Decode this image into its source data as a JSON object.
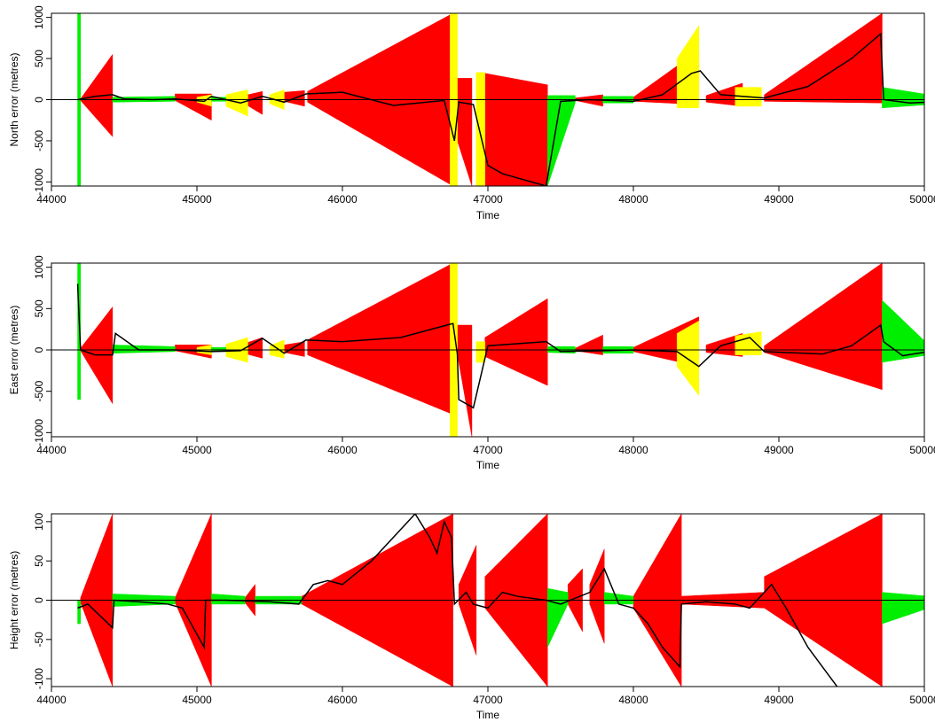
{
  "chart_data": [
    {
      "type": "area",
      "xlabel": "Time",
      "ylabel": "North error (metres)",
      "xlim": [
        44000,
        50000
      ],
      "ylim": [
        -1050,
        1050
      ],
      "xticks": [
        44000,
        45000,
        46000,
        47000,
        48000,
        49000,
        50000
      ],
      "yticks": [
        -1000,
        -500,
        0,
        500,
        1000
      ],
      "colors": {
        "bound_red": "#ff0000",
        "bound_yellow": "#ffff00",
        "bound_green": "#00ee00",
        "line": "#000000"
      },
      "red_segments": [
        {
          "x": [
            44200,
            44420
          ],
          "lo": [
            -10,
            -450
          ],
          "hi": [
            10,
            550
          ]
        },
        {
          "x": [
            44850,
            45100
          ],
          "lo": [
            -10,
            -250
          ],
          "hi": [
            70,
            70
          ]
        },
        {
          "x": [
            45300,
            45450
          ],
          "lo": [
            -20,
            -180
          ],
          "hi": [
            40,
            100
          ]
        },
        {
          "x": [
            45600,
            45740
          ],
          "lo": [
            -20,
            -80
          ],
          "hi": [
            90,
            110
          ]
        },
        {
          "x": [
            45760,
            46760
          ],
          "lo": [
            -30,
            -1050
          ],
          "hi": [
            100,
            1050
          ]
        },
        {
          "x": [
            46790,
            46890
          ],
          "lo": [
            -500,
            -1050
          ],
          "hi": [
            260,
            260
          ]
        },
        {
          "x": [
            46950,
            47410
          ],
          "lo": [
            -1050,
            -1050
          ],
          "hi": [
            330,
            180
          ]
        },
        {
          "x": [
            47600,
            47790
          ],
          "lo": [
            -10,
            -80
          ],
          "hi": [
            20,
            60
          ]
        },
        {
          "x": [
            48000,
            48450
          ],
          "lo": [
            -20,
            -60
          ],
          "hi": [
            30,
            600
          ]
        },
        {
          "x": [
            48500,
            48750
          ],
          "lo": [
            -30,
            -80
          ],
          "hi": [
            50,
            200
          ]
        },
        {
          "x": [
            48900,
            49710
          ],
          "lo": [
            -20,
            -40
          ],
          "hi": [
            60,
            1050
          ]
        }
      ],
      "yellow_segments": [
        {
          "x": [
            45000,
            45100
          ],
          "lo": [
            -30,
            -80
          ],
          "hi": [
            30,
            60
          ]
        },
        {
          "x": [
            45200,
            45350
          ],
          "lo": [
            -80,
            -200
          ],
          "hi": [
            60,
            120
          ]
        },
        {
          "x": [
            45500,
            45600
          ],
          "lo": [
            -50,
            -120
          ],
          "hi": [
            60,
            120
          ]
        },
        {
          "x": [
            46740,
            46790
          ],
          "lo": [
            -1050,
            -1050
          ],
          "hi": [
            1050,
            1050
          ]
        },
        {
          "x": [
            46920,
            46980
          ],
          "lo": [
            -1050,
            -1050
          ],
          "hi": [
            330,
            330
          ]
        },
        {
          "x": [
            48300,
            48450
          ],
          "lo": [
            -100,
            -100
          ],
          "hi": [
            500,
            900
          ]
        },
        {
          "x": [
            48700,
            48880
          ],
          "lo": [
            -80,
            -80
          ],
          "hi": [
            150,
            150
          ]
        }
      ],
      "green_segments": [
        {
          "x": [
            44180,
            44200
          ],
          "lo": [
            -1050,
            -1050
          ],
          "hi": [
            1050,
            1050
          ]
        },
        {
          "x": [
            44420,
            44850
          ],
          "lo": [
            -30,
            -20
          ],
          "hi": [
            30,
            40
          ]
        },
        {
          "x": [
            45100,
            45200
          ],
          "lo": [
            -20,
            -20
          ],
          "hi": [
            30,
            30
          ]
        },
        {
          "x": [
            47410,
            47600
          ],
          "lo": [
            -1050,
            -40
          ],
          "hi": [
            50,
            50
          ]
        },
        {
          "x": [
            47790,
            48000
          ],
          "lo": [
            -40,
            -40
          ],
          "hi": [
            40,
            40
          ]
        },
        {
          "x": [
            49710,
            50030
          ],
          "lo": [
            -100,
            -60
          ],
          "hi": [
            150,
            60
          ]
        }
      ],
      "line": {
        "x": [
          44180,
          44300,
          44420,
          44500,
          44700,
          44850,
          45050,
          45100,
          45300,
          45450,
          45600,
          45750,
          46000,
          46350,
          46700,
          46770,
          46800,
          46900,
          47000,
          47100,
          47400,
          47500,
          47700,
          48000,
          48200,
          48400,
          48460,
          48600,
          48900,
          49200,
          49500,
          49700,
          49720,
          49900,
          50030
        ],
        "y": [
          0,
          40,
          60,
          10,
          0,
          10,
          -20,
          40,
          -40,
          40,
          -30,
          70,
          90,
          -70,
          -10,
          -500,
          -30,
          -60,
          -800,
          -900,
          -1050,
          -20,
          0,
          -20,
          60,
          320,
          350,
          60,
          20,
          160,
          500,
          800,
          0,
          -40,
          -30
        ]
      }
    },
    {
      "type": "area",
      "xlabel": "Time",
      "ylabel": "East error (metres)",
      "xlim": [
        44000,
        50000
      ],
      "ylim": [
        -1050,
        1050
      ],
      "xticks": [
        44000,
        45000,
        46000,
        47000,
        48000,
        49000,
        50000
      ],
      "yticks": [
        -1000,
        -500,
        0,
        500,
        1000
      ],
      "colors": {
        "bound_red": "#ff0000",
        "bound_yellow": "#ffff00",
        "bound_green": "#00ee00",
        "line": "#000000"
      },
      "red_segments": [
        {
          "x": [
            44200,
            44420
          ],
          "lo": [
            -10,
            -650
          ],
          "hi": [
            20,
            520
          ]
        },
        {
          "x": [
            44850,
            45100
          ],
          "lo": [
            -10,
            -100
          ],
          "hi": [
            60,
            60
          ]
        },
        {
          "x": [
            45300,
            45450
          ],
          "lo": [
            -30,
            -100
          ],
          "hi": [
            60,
            150
          ]
        },
        {
          "x": [
            45600,
            45740
          ],
          "lo": [
            -30,
            -80
          ],
          "hi": [
            60,
            100
          ]
        },
        {
          "x": [
            45760,
            46760
          ],
          "lo": [
            -60,
            -780
          ],
          "hi": [
            120,
            1050
          ]
        },
        {
          "x": [
            46790,
            46890
          ],
          "lo": [
            -50,
            -1050
          ],
          "hi": [
            300,
            300
          ]
        },
        {
          "x": [
            46980,
            47410
          ],
          "lo": [
            -80,
            -430
          ],
          "hi": [
            150,
            620
          ]
        },
        {
          "x": [
            47600,
            47790
          ],
          "lo": [
            -10,
            -60
          ],
          "hi": [
            20,
            180
          ]
        },
        {
          "x": [
            48000,
            48450
          ],
          "lo": [
            -20,
            -200
          ],
          "hi": [
            30,
            400
          ]
        },
        {
          "x": [
            48500,
            48750
          ],
          "lo": [
            -30,
            -80
          ],
          "hi": [
            60,
            200
          ]
        },
        {
          "x": [
            48900,
            49710
          ],
          "lo": [
            -30,
            -480
          ],
          "hi": [
            50,
            1050
          ]
        }
      ],
      "yellow_segments": [
        {
          "x": [
            45000,
            45100
          ],
          "lo": [
            -30,
            -60
          ],
          "hi": [
            30,
            60
          ]
        },
        {
          "x": [
            45200,
            45350
          ],
          "lo": [
            -80,
            -150
          ],
          "hi": [
            70,
            150
          ]
        },
        {
          "x": [
            45500,
            45600
          ],
          "lo": [
            -60,
            -100
          ],
          "hi": [
            50,
            120
          ]
        },
        {
          "x": [
            46740,
            46790
          ],
          "lo": [
            -1050,
            -1050
          ],
          "hi": [
            1050,
            1050
          ]
        },
        {
          "x": [
            46920,
            46980
          ],
          "lo": [
            -150,
            -150
          ],
          "hi": [
            100,
            100
          ]
        },
        {
          "x": [
            48300,
            48450
          ],
          "lo": [
            -200,
            -550
          ],
          "hi": [
            200,
            350
          ]
        },
        {
          "x": [
            48700,
            48880
          ],
          "lo": [
            -60,
            -60
          ],
          "hi": [
            170,
            220
          ]
        }
      ],
      "green_segments": [
        {
          "x": [
            44180,
            44200
          ],
          "lo": [
            -600,
            -600
          ],
          "hi": [
            1050,
            1050
          ]
        },
        {
          "x": [
            44420,
            44850
          ],
          "lo": [
            -40,
            -20
          ],
          "hi": [
            60,
            40
          ]
        },
        {
          "x": [
            45100,
            45200
          ],
          "lo": [
            -20,
            -20
          ],
          "hi": [
            30,
            30
          ]
        },
        {
          "x": [
            47410,
            47600
          ],
          "lo": [
            -30,
            -40
          ],
          "hi": [
            40,
            40
          ]
        },
        {
          "x": [
            47790,
            48000
          ],
          "lo": [
            -40,
            -40
          ],
          "hi": [
            40,
            40
          ]
        },
        {
          "x": [
            49710,
            50030
          ],
          "lo": [
            -150,
            -60
          ],
          "hi": [
            600,
            60
          ]
        }
      ],
      "line": {
        "x": [
          44180,
          44200,
          44300,
          44420,
          44440,
          44600,
          44850,
          45100,
          45300,
          45450,
          45600,
          45750,
          46000,
          46400,
          46760,
          46790,
          46800,
          46900,
          47000,
          47400,
          47500,
          47800,
          48000,
          48300,
          48450,
          48600,
          48800,
          48900,
          49300,
          49500,
          49700,
          49720,
          49850,
          50030
        ],
        "y": [
          800,
          0,
          -60,
          -60,
          200,
          0,
          0,
          -20,
          -10,
          140,
          -40,
          120,
          100,
          150,
          320,
          -50,
          -600,
          -700,
          50,
          100,
          -20,
          -10,
          0,
          -20,
          -200,
          50,
          150,
          -20,
          -50,
          50,
          300,
          100,
          -70,
          -20
        ]
      }
    },
    {
      "type": "area",
      "xlabel": "Time",
      "ylabel": "Height error (metres)",
      "xlim": [
        44000,
        50000
      ],
      "ylim": [
        -110,
        110
      ],
      "xticks": [
        44000,
        45000,
        46000,
        47000,
        48000,
        49000,
        50000
      ],
      "yticks": [
        -100,
        -50,
        0,
        50,
        100
      ],
      "colors": {
        "bound_red": "#ff0000",
        "bound_green": "#00ee00",
        "line": "#000000"
      },
      "red_segments": [
        {
          "x": [
            44200,
            44420
          ],
          "lo": [
            -3,
            -110
          ],
          "hi": [
            3,
            110
          ]
        },
        {
          "x": [
            44850,
            45100
          ],
          "lo": [
            -3,
            -110
          ],
          "hi": [
            3,
            110
          ]
        },
        {
          "x": [
            45330,
            45400
          ],
          "lo": [
            -3,
            -20
          ],
          "hi": [
            3,
            20
          ]
        },
        {
          "x": [
            45720,
            46760
          ],
          "lo": [
            -5,
            -110
          ],
          "hi": [
            5,
            110
          ]
        },
        {
          "x": [
            46800,
            46920
          ],
          "lo": [
            -5,
            -70
          ],
          "hi": [
            20,
            70
          ]
        },
        {
          "x": [
            46980,
            47410
          ],
          "lo": [
            -10,
            -110
          ],
          "hi": [
            30,
            110
          ]
        },
        {
          "x": [
            47550,
            47650
          ],
          "lo": [
            -5,
            -40
          ],
          "hi": [
            20,
            40
          ]
        },
        {
          "x": [
            47700,
            47800
          ],
          "lo": [
            -5,
            -55
          ],
          "hi": [
            20,
            65
          ]
        },
        {
          "x": [
            48000,
            48330
          ],
          "lo": [
            -10,
            -110
          ],
          "hi": [
            5,
            110
          ]
        },
        {
          "x": [
            48330,
            48900
          ],
          "lo": [
            -5,
            -10
          ],
          "hi": [
            5,
            10
          ]
        },
        {
          "x": [
            48900,
            49710
          ],
          "lo": [
            -10,
            -110
          ],
          "hi": [
            30,
            110
          ]
        }
      ],
      "green_segments": [
        {
          "x": [
            44180,
            44200
          ],
          "lo": [
            -30,
            -30
          ],
          "hi": [
            0,
            0
          ]
        },
        {
          "x": [
            44420,
            44850
          ],
          "lo": [
            -8,
            -5
          ],
          "hi": [
            8,
            5
          ]
        },
        {
          "x": [
            45100,
            45330
          ],
          "lo": [
            -5,
            -5
          ],
          "hi": [
            8,
            5
          ]
        },
        {
          "x": [
            45400,
            45720
          ],
          "lo": [
            -5,
            -5
          ],
          "hi": [
            5,
            5
          ]
        },
        {
          "x": [
            47410,
            47550
          ],
          "lo": [
            -60,
            -5
          ],
          "hi": [
            15,
            10
          ]
        },
        {
          "x": [
            47800,
            48000
          ],
          "lo": [
            -5,
            -5
          ],
          "hi": [
            10,
            5
          ]
        },
        {
          "x": [
            49710,
            50030
          ],
          "lo": [
            -30,
            -10
          ],
          "hi": [
            10,
            5
          ]
        }
      ],
      "line": {
        "x": [
          44180,
          44250,
          44420,
          44430,
          44600,
          44800,
          44900,
          45050,
          45060,
          45200,
          45500,
          45700,
          45800,
          45900,
          46000,
          46200,
          46400,
          46500,
          46600,
          46650,
          46700,
          46750,
          46770,
          46850,
          46900,
          47000,
          47100,
          47200,
          47400,
          47500,
          47700,
          47800,
          47900,
          48000,
          48100,
          48200,
          48320,
          48330,
          48500,
          48700,
          48800,
          48950,
          49050,
          49200,
          49400
        ],
        "y": [
          -10,
          -5,
          -35,
          0,
          -2,
          -5,
          -10,
          -60,
          0,
          0,
          -2,
          -5,
          20,
          25,
          20,
          50,
          90,
          110,
          80,
          60,
          100,
          80,
          -5,
          10,
          -5,
          -10,
          10,
          5,
          0,
          -5,
          10,
          40,
          -5,
          -10,
          -30,
          -60,
          -85,
          -5,
          -2,
          -5,
          -10,
          20,
          -10,
          -60,
          -110
        ]
      }
    }
  ]
}
